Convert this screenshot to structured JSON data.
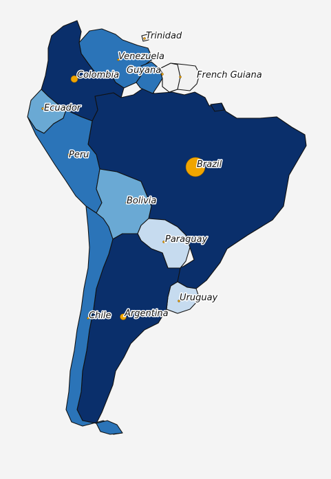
{
  "map": {
    "countries": [
      {
        "name": "Trinidad",
        "color": "#f2f2f2"
      },
      {
        "name": "Venezuela",
        "color": "#2b74b8"
      },
      {
        "name": "Colombia",
        "color": "#0a2f6b"
      },
      {
        "name": "Guyana",
        "color": "#2b74b8"
      },
      {
        "name": "French Guiana",
        "color": "#f2f2f2"
      },
      {
        "name": "Ecuador",
        "color": "#6aa9d4"
      },
      {
        "name": "Peru",
        "color": "#2b74b8"
      },
      {
        "name": "Brazil",
        "color": "#0a2f6b"
      },
      {
        "name": "Bolivia",
        "color": "#6aa9d4"
      },
      {
        "name": "Paraguay",
        "color": "#c6dbef"
      },
      {
        "name": "Uruguay",
        "color": "#c6dbef"
      },
      {
        "name": "Chile",
        "color": "#2b74b8"
      },
      {
        "name": "Argentina",
        "color": "#0a2f6b"
      }
    ],
    "markers": [
      {
        "label": "Colombia",
        "size": "medium"
      },
      {
        "label": "Brazil",
        "size": "large"
      },
      {
        "label": "Argentina",
        "size": "small"
      },
      {
        "label": "Trinidad",
        "size": "tiny"
      },
      {
        "label": "Venezuela",
        "size": "tiny"
      },
      {
        "label": "Guyana",
        "size": "tiny"
      },
      {
        "label": "French Guiana",
        "size": "tiny"
      },
      {
        "label": "Ecuador",
        "size": "tiny"
      },
      {
        "label": "Peru",
        "size": "tiny"
      },
      {
        "label": "Bolivia",
        "size": "tiny"
      },
      {
        "label": "Paraguay",
        "size": "tiny"
      },
      {
        "label": "Uruguay",
        "size": "tiny"
      },
      {
        "label": "Chile",
        "size": "tiny"
      }
    ],
    "labels": {
      "trinidad": "Trinidad",
      "venezuela": "Venezuela",
      "guyana": "Guyana",
      "colombia": "Colombia",
      "french_guiana": "French Guiana",
      "ecuador": "Ecuador",
      "peru": "Peru",
      "brazil": "Brazil",
      "bolivia": "Bolivia",
      "paraguay": "Paraguay",
      "uruguay": "Uruguay",
      "chile": "Chile",
      "argentina": "Argentina"
    }
  }
}
